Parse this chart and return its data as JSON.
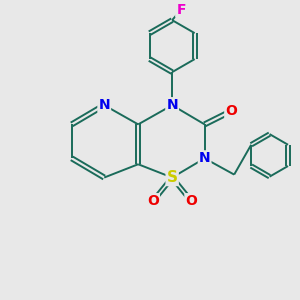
{
  "background_color": "#e8e8e8",
  "bond_color": "#1a6b5a",
  "N_color": "#0000ee",
  "O_color": "#ee0000",
  "S_color": "#cccc00",
  "F_color": "#ee00cc",
  "figsize": [
    3.0,
    3.0
  ],
  "dpi": 100,
  "xlim": [
    0,
    10
  ],
  "ylim": [
    0,
    10
  ]
}
